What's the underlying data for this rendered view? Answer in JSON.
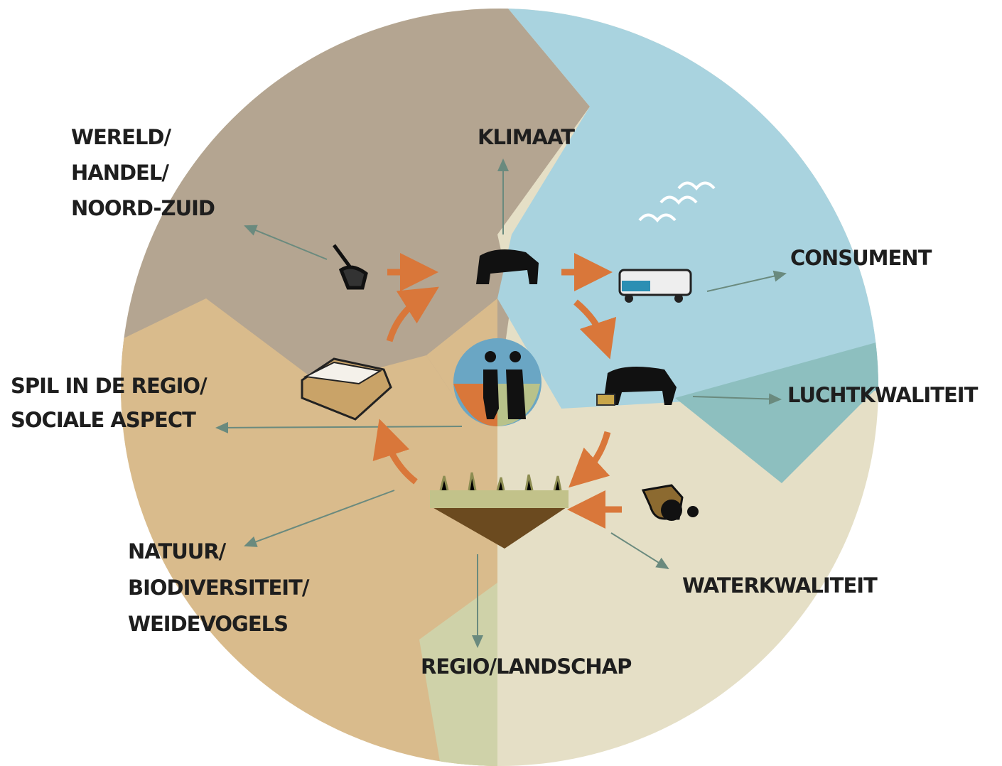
{
  "labels": [
    {
      "lines": [
        "WERELD/",
        "HANDEL/",
        "NOORD-ZUID"
      ]
    },
    {
      "lines": [
        "KLIMAAT"
      ]
    },
    {
      "lines": [
        "CONSUMENT"
      ]
    },
    {
      "lines": [
        "LUCHTKWALITEIT"
      ]
    },
    {
      "lines": [
        "SPIL IN DE REGIO/",
        "SOCIALE ASPECT"
      ]
    },
    {
      "lines": [
        "NATUUR/",
        "BIODIVERSITEIT/",
        "WEIDEVOGELS"
      ]
    },
    {
      "lines": [
        "WATERKWALITEIT"
      ]
    },
    {
      "lines": [
        "REGIO/LANDSCHAP"
      ]
    }
  ]
}
